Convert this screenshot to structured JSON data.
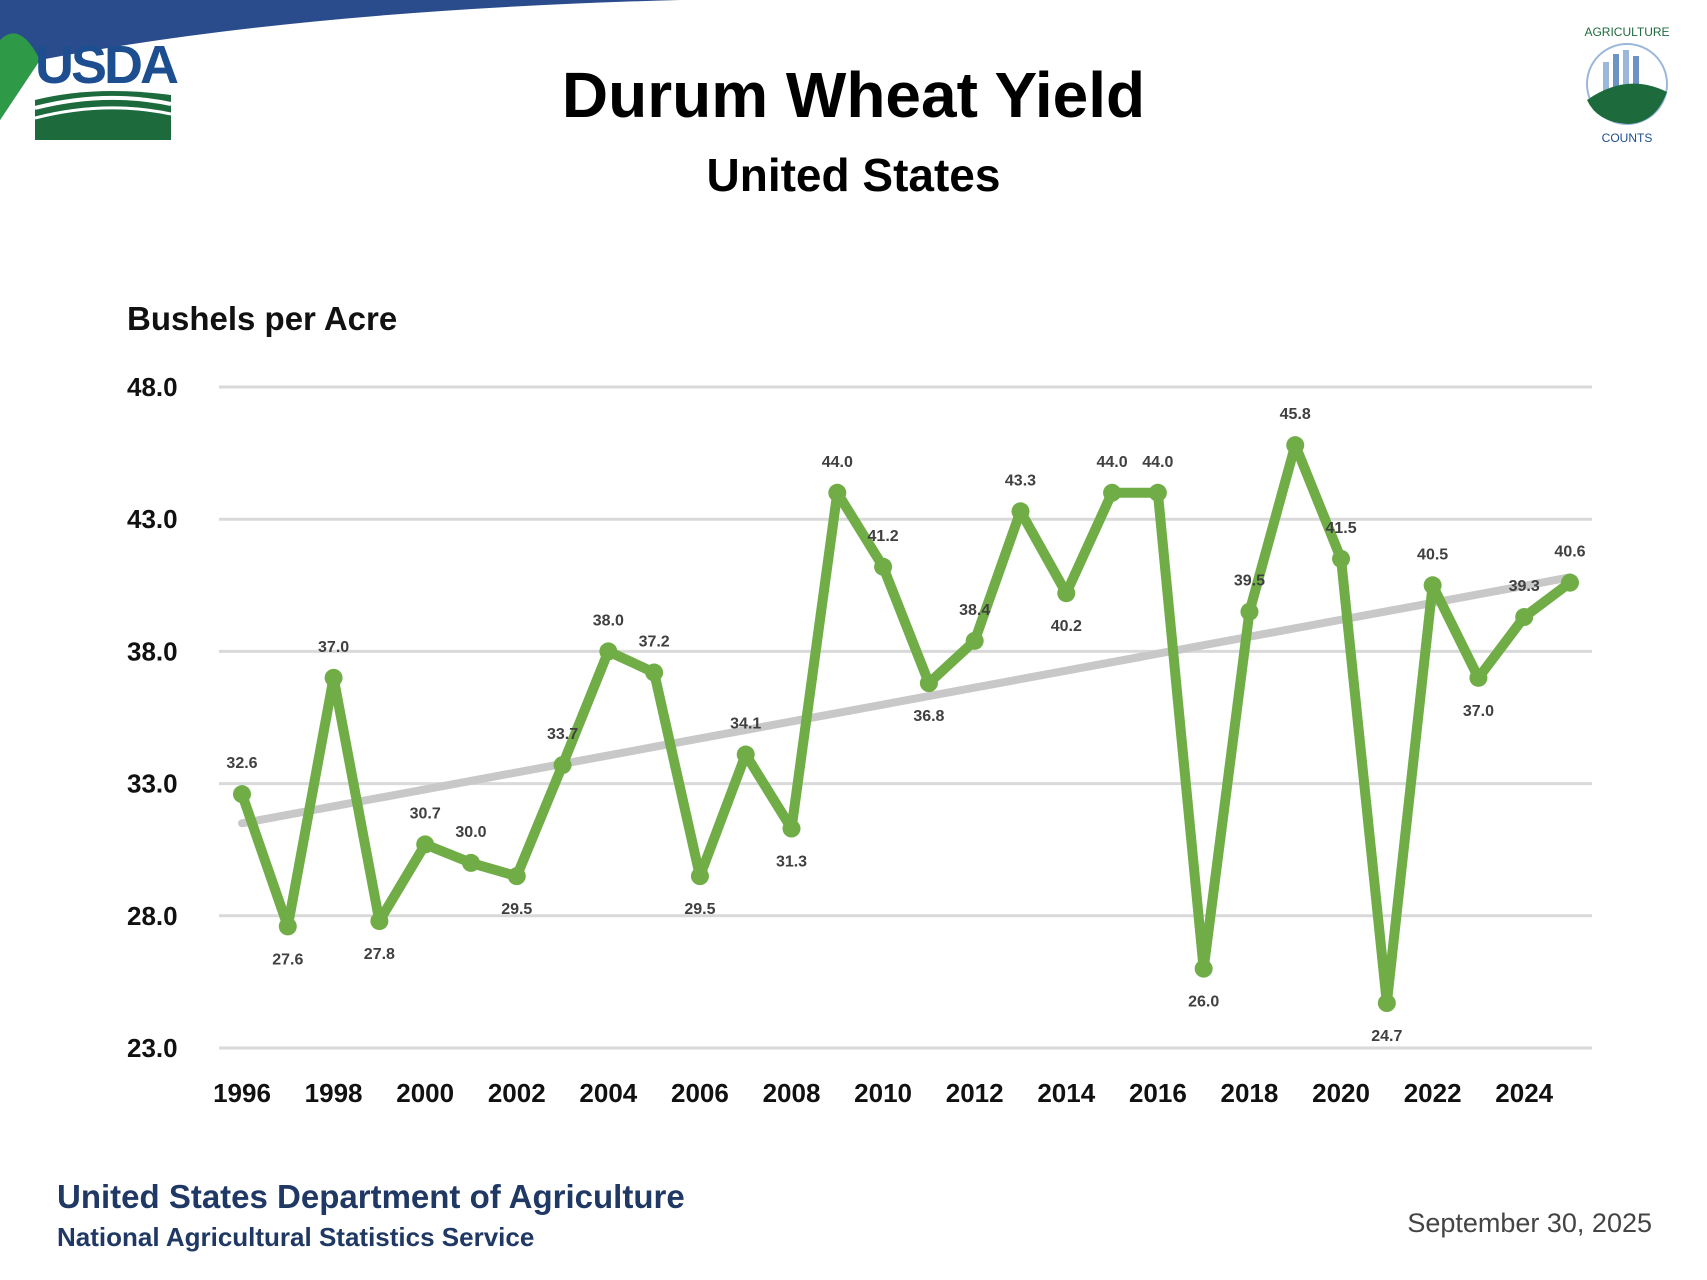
{
  "header": {
    "title": "Durum Wheat Yield",
    "subtitle": "United States",
    "logo_left": "USDA",
    "logo_right": "AGRICULTURE COUNTS"
  },
  "footer": {
    "department": "United States Department of Agriculture",
    "service": "National Agricultural Statistics Service",
    "date": "September 30, 2025"
  },
  "colors": {
    "line": "#70ad47",
    "trend": "#c8c8c8",
    "grid": "#d9d9d9"
  },
  "chart_data": {
    "type": "line",
    "title": "Durum Wheat Yield",
    "subtitle": "United States",
    "ylabel": "Bushels per Acre",
    "xlabel": "",
    "ylim": [
      23.0,
      48.0
    ],
    "yticks": [
      "23.0",
      "28.0",
      "33.0",
      "38.0",
      "43.0",
      "48.0"
    ],
    "xticks": [
      "1996",
      "1998",
      "2000",
      "2002",
      "2004",
      "2006",
      "2008",
      "2010",
      "2012",
      "2014",
      "2016",
      "2018",
      "2020",
      "2022",
      "2024"
    ],
    "grid": true,
    "x": [
      1996,
      1997,
      1998,
      1999,
      2000,
      2001,
      2002,
      2003,
      2004,
      2005,
      2006,
      2007,
      2008,
      2009,
      2010,
      2011,
      2012,
      2013,
      2014,
      2015,
      2016,
      2017,
      2018,
      2019,
      2020,
      2021,
      2022,
      2023,
      2024,
      2025
    ],
    "series": [
      {
        "name": "Yield",
        "values": [
          32.6,
          27.6,
          37.0,
          27.8,
          30.7,
          30.0,
          29.5,
          33.7,
          38.0,
          37.2,
          29.5,
          34.1,
          31.3,
          44.0,
          41.2,
          36.8,
          38.4,
          43.3,
          40.2,
          44.0,
          44.0,
          26.0,
          39.5,
          45.8,
          41.5,
          24.7,
          40.5,
          37.0,
          39.3,
          40.6
        ]
      },
      {
        "name": "Trend",
        "type": "linear",
        "values": [
          31.5,
          40.8
        ],
        "x": [
          1996,
          2025
        ]
      }
    ]
  }
}
